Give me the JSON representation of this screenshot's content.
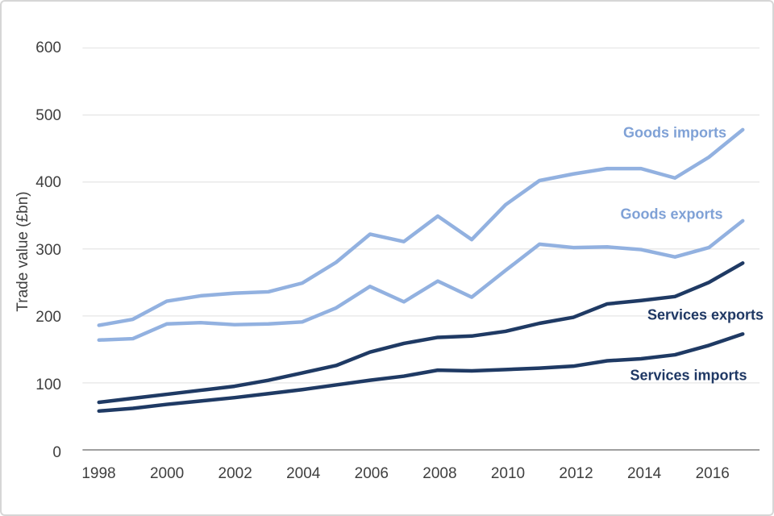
{
  "chart_data": {
    "type": "line",
    "title": "",
    "xlabel": "",
    "ylabel": "Trade value (£bn)",
    "x": [
      1998,
      1999,
      2000,
      2001,
      2002,
      2003,
      2004,
      2005,
      2006,
      2007,
      2008,
      2009,
      2010,
      2011,
      2012,
      2013,
      2014,
      2015,
      2016,
      2017
    ],
    "xlim": [
      1998,
      2017
    ],
    "ylim": [
      0,
      600
    ],
    "xticks": [
      1998,
      2000,
      2002,
      2004,
      2006,
      2008,
      2010,
      2012,
      2014,
      2016
    ],
    "yticks": [
      0,
      100,
      200,
      300,
      400,
      500,
      600
    ],
    "grid": "horizontal",
    "legend": "inline-labels",
    "colors": {
      "light_blue_line": "#92b1e0",
      "light_blue_label": "#7fa1d6",
      "dark_navy_line": "#1f3a64",
      "dark_navy_label": "#1f3864",
      "gridline": "#e9e9e9",
      "axis_line": "#9f9f9f",
      "tick_text": "#3f3f3f"
    },
    "series": [
      {
        "name": "Goods imports",
        "color": "#92b1e0",
        "label_color": "#7fa1d6",
        "label_anchor": {
          "x": 2014.9,
          "y": 474
        },
        "values": [
          186,
          195,
          222,
          230,
          234,
          236,
          249,
          280,
          322,
          311,
          349,
          314,
          366,
          402,
          412,
          420,
          420,
          406,
          437,
          478
        ]
      },
      {
        "name": "Goods exports",
        "color": "#92b1e0",
        "label_color": "#7fa1d6",
        "label_anchor": {
          "x": 2014.8,
          "y": 354
        },
        "values": [
          164,
          166,
          188,
          190,
          187,
          188,
          191,
          212,
          244,
          221,
          252,
          228,
          268,
          307,
          302,
          303,
          299,
          288,
          302,
          342
        ]
      },
      {
        "name": "Services exports",
        "color": "#1f3a64",
        "label_color": "#1f3864",
        "label_anchor": {
          "x": 2015.8,
          "y": 204
        },
        "values": [
          71,
          77,
          83,
          89,
          95,
          104,
          115,
          126,
          146,
          159,
          168,
          170,
          177,
          189,
          198,
          218,
          223,
          229,
          250,
          279
        ]
      },
      {
        "name": "Services imports",
        "color": "#1f3a64",
        "label_color": "#1f3864",
        "label_anchor": {
          "x": 2015.3,
          "y": 114
        },
        "values": [
          58,
          62,
          68,
          73,
          78,
          84,
          90,
          97,
          104,
          110,
          119,
          118,
          120,
          122,
          125,
          133,
          136,
          142,
          156,
          173
        ]
      }
    ]
  }
}
